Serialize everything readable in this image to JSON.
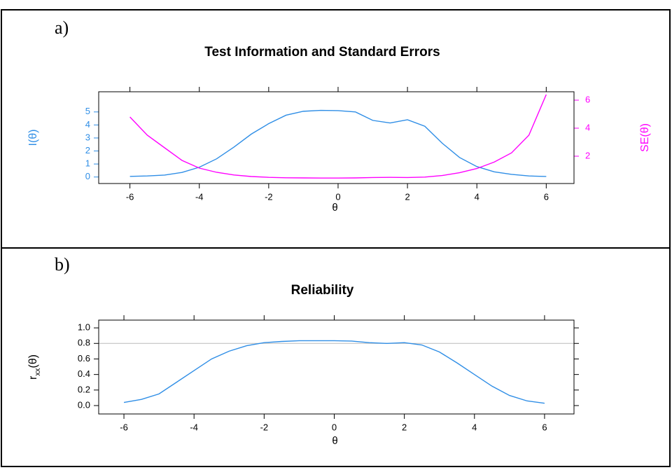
{
  "chart_data": [
    {
      "type": "line",
      "panel_label": "a)",
      "title": "Test Information and Standard Errors",
      "xlabel": "θ",
      "ylabel": [
        "I(θ)"
      ],
      "y2label": "SE(θ)",
      "x": [
        -6,
        -5.5,
        -5,
        -4.5,
        -4,
        -3.5,
        -3,
        -2.5,
        -2,
        -1.5,
        -1,
        -0.5,
        0,
        0.5,
        1,
        1.5,
        2,
        2.5,
        3,
        3.5,
        4,
        4.5,
        5,
        5.5,
        6
      ],
      "series": [
        {
          "name": "I(θ)",
          "color": "#2f8ee6",
          "values": [
            0.05,
            0.08,
            0.15,
            0.35,
            0.75,
            1.4,
            2.3,
            3.3,
            4.1,
            4.75,
            5.05,
            5.12,
            5.1,
            5.0,
            4.35,
            4.15,
            4.4,
            3.9,
            2.6,
            1.5,
            0.8,
            0.4,
            0.2,
            0.08,
            0.04
          ]
        },
        {
          "name": "SE(θ)",
          "color": "#ff00ff",
          "axis": "y2",
          "values": [
            4.8,
            3.5,
            2.6,
            1.7,
            1.15,
            0.85,
            0.66,
            0.55,
            0.49,
            0.46,
            0.45,
            0.44,
            0.44,
            0.45,
            0.48,
            0.49,
            0.48,
            0.51,
            0.62,
            0.82,
            1.12,
            1.58,
            2.24,
            3.5,
            6.4
          ]
        }
      ],
      "xlim": [
        -6.9,
        6.8
      ],
      "xticks": [
        -6,
        -4,
        -2,
        0,
        2,
        4,
        6
      ],
      "ylim": [
        -0.5,
        6.55
      ],
      "yticks": [
        0,
        1,
        2,
        3,
        4,
        5
      ],
      "ycolor": "#2f8ee6",
      "y2lim": [
        0.05,
        6.6
      ],
      "y2ticks": [
        2,
        4,
        6
      ],
      "y2color": "#ff00ff",
      "top_ticks": true
    },
    {
      "type": "line",
      "panel_label": "b)",
      "title": "Reliability",
      "xlabel": "θ",
      "ylabel": [
        "r",
        "xx",
        "(θ)"
      ],
      "x": [
        -6,
        -5.5,
        -5,
        -4.5,
        -4,
        -3.5,
        -3,
        -2.5,
        -2,
        -1.5,
        -1,
        -0.5,
        0,
        0.5,
        1,
        1.5,
        2,
        2.5,
        3,
        3.5,
        4,
        4.5,
        5,
        5.5,
        6
      ],
      "series": [
        {
          "name": "rxx(θ)",
          "color": "#2f8ee6",
          "values": [
            0.04,
            0.08,
            0.15,
            0.3,
            0.45,
            0.6,
            0.7,
            0.77,
            0.81,
            0.825,
            0.835,
            0.835,
            0.835,
            0.83,
            0.81,
            0.8,
            0.81,
            0.78,
            0.69,
            0.55,
            0.4,
            0.25,
            0.13,
            0.06,
            0.03
          ]
        }
      ],
      "xlim": [
        -6.72,
        6.84
      ],
      "xticks": [
        -6,
        -4,
        -2,
        0,
        2,
        4,
        6
      ],
      "ylim": [
        -0.108,
        1.1
      ],
      "yticks": [
        {
          "value": 0,
          "label": "0.0"
        },
        0.2,
        0.4,
        0.6,
        0.8,
        {
          "value": 1,
          "label": "1.0"
        }
      ],
      "ycolor": "#000000",
      "hline": 0.8,
      "hline_color": "#bbbbbb",
      "top_ticks": true,
      "right_ticks": true
    }
  ]
}
